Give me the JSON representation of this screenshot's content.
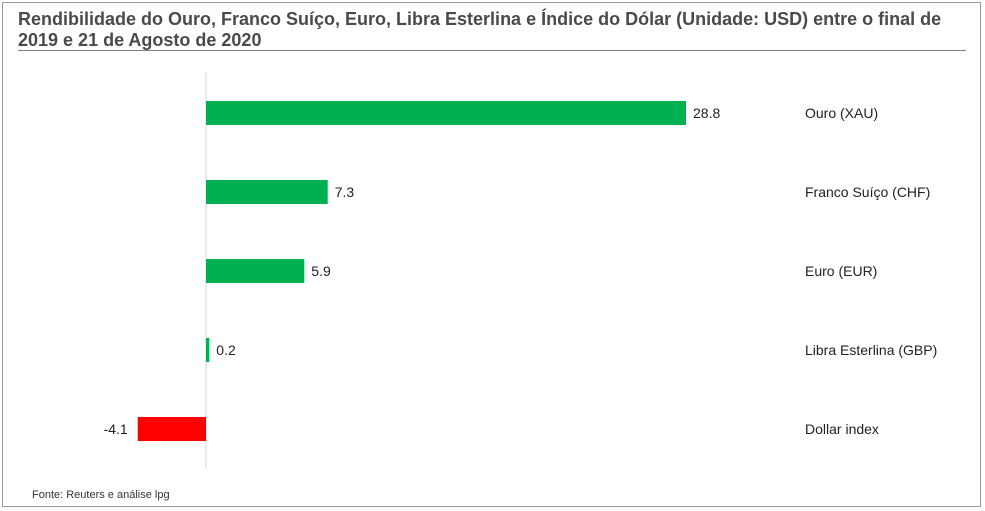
{
  "chart_data": {
    "type": "bar",
    "orientation": "horizontal",
    "title": "Rendibilidade  do Ouro, Franco Suíço, Euro, Libra Esterlina e Índice do Dólar (Unidade: USD) entre o final de 2019 e 21 de Agosto de 2020",
    "categories": [
      "Ouro (XAU)",
      "Franco Suíço (CHF)",
      "Euro (EUR)",
      "Libra Esterlina (GBP)",
      "Dollar index"
    ],
    "values": [
      28.8,
      7.3,
      5.9,
      0.2,
      -4.1
    ],
    "value_labels": [
      "28.8",
      "7.3",
      "5.9",
      "0.2",
      "-4.1"
    ],
    "xlim": [
      -4.1,
      28.8
    ],
    "grid": false,
    "legend": "none",
    "colors": {
      "positive": "#00b050",
      "negative": "#ff0000",
      "axis": "#d9d9d9"
    }
  },
  "source": "Fonte: Reuters e análise lpg"
}
